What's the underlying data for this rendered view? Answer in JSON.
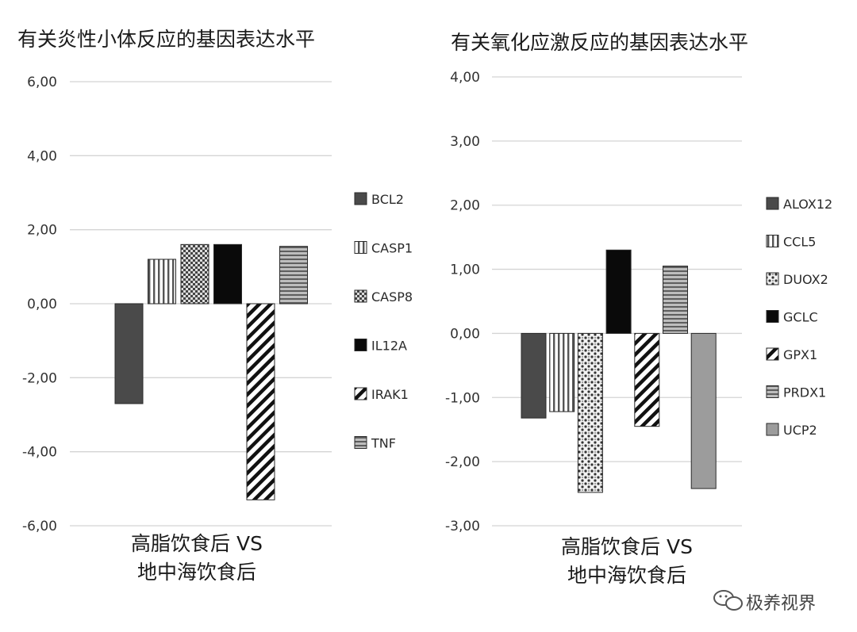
{
  "chart_data": [
    {
      "type": "bar",
      "title": "有关炎性小体反应的基因表达水平",
      "category_label_lines": [
        "高脂饮食后 VS",
        "地中海饮食后"
      ],
      "ylim": [
        -6,
        6
      ],
      "y_ticks": [
        "6,00",
        "4,00",
        "2,00",
        "0,00",
        "-2,00",
        "-4,00",
        "-6,00"
      ],
      "y_tick_values": [
        6,
        4,
        2,
        0,
        -2,
        -4,
        -6
      ],
      "grid": true,
      "legend_position": "right",
      "series": [
        {
          "name": "BCL2",
          "values": [
            -2.7
          ],
          "fill": "dark",
          "color": "#4a4a4a"
        },
        {
          "name": "CASP1",
          "values": [
            1.2
          ],
          "fill": "vstripe",
          "color": "#555555"
        },
        {
          "name": "CASP8",
          "values": [
            1.6
          ],
          "fill": "checker",
          "color": "#555555"
        },
        {
          "name": "IL12A",
          "values": [
            1.6
          ],
          "fill": "black",
          "color": "#0a0a0a"
        },
        {
          "name": "IRAK1",
          "values": [
            -5.3
          ],
          "fill": "diag",
          "color": "#111111"
        },
        {
          "name": "TNF",
          "values": [
            1.55
          ],
          "fill": "hstripe",
          "color": "#777777"
        }
      ]
    },
    {
      "type": "bar",
      "title": "有关氧化应激反应的基因表达水平",
      "category_label_lines": [
        "高脂饮食后 VS",
        "地中海饮食后"
      ],
      "ylim": [
        -3,
        4
      ],
      "y_ticks": [
        "4,00",
        "3,00",
        "2,00",
        "1,00",
        "0,00",
        "-1,00",
        "-2,00",
        "-3,00"
      ],
      "y_tick_values": [
        4,
        3,
        2,
        1,
        0,
        -1,
        -2,
        -3
      ],
      "grid": true,
      "legend_position": "right",
      "series": [
        {
          "name": "ALOX12",
          "values": [
            -1.32
          ],
          "fill": "dark",
          "color": "#3a3a3a"
        },
        {
          "name": "CCL5",
          "values": [
            -1.22
          ],
          "fill": "vstripe",
          "color": "#555555"
        },
        {
          "name": "DUOX2",
          "values": [
            -2.48
          ],
          "fill": "dots",
          "color": "#333333"
        },
        {
          "name": "GCLC",
          "values": [
            1.3
          ],
          "fill": "black",
          "color": "#0a0a0a"
        },
        {
          "name": "GPX1",
          "values": [
            -1.45
          ],
          "fill": "diag",
          "color": "#333333"
        },
        {
          "name": "PRDX1",
          "values": [
            1.05
          ],
          "fill": "hstripe",
          "color": "#666666"
        },
        {
          "name": "UCP2",
          "values": [
            -2.42
          ],
          "fill": "gray",
          "color": "#9a9a9a"
        }
      ]
    }
  ],
  "watermark": "极养视界"
}
